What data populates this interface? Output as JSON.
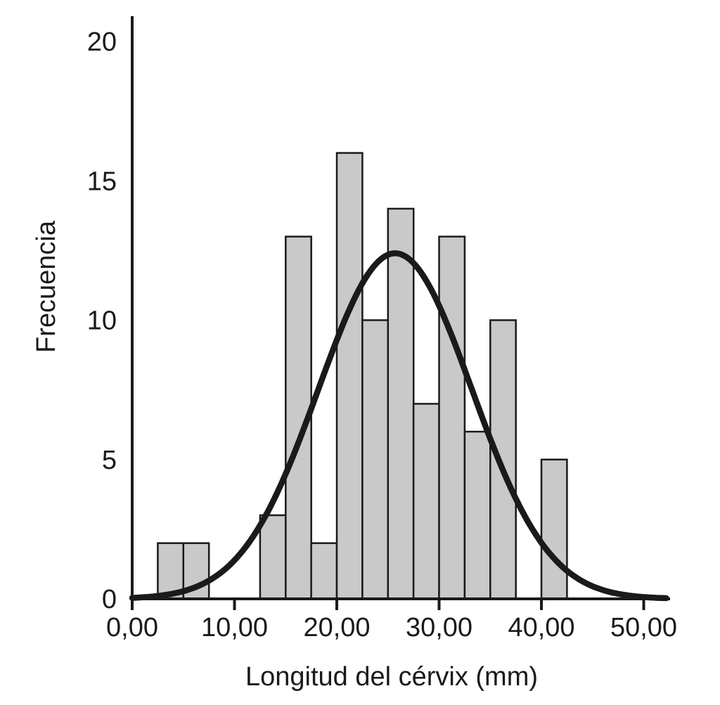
{
  "figure": {
    "background_color": "#ffffff",
    "bar_fill_color": "#c9c9c9",
    "bar_border_color": "#1a1a1a",
    "axis_color": "#1a1a1a",
    "curve_color": "#1a1a1a"
  },
  "chart_data": {
    "type": "bar",
    "subtype": "histogram-with-normal-curve",
    "title": "",
    "xlabel": "Longitud del cérvix (mm)",
    "ylabel": "Frecuencia",
    "xlim": [
      0,
      52.4
    ],
    "ylim": [
      0,
      20.9
    ],
    "grid": false,
    "legend": null,
    "bin_width": 2.5,
    "total_n": 103,
    "bins": [
      {
        "start": 2.5,
        "end": 5.0,
        "count": 2
      },
      {
        "start": 5.0,
        "end": 7.5,
        "count": 2
      },
      {
        "start": 7.5,
        "end": 10.0,
        "count": 0
      },
      {
        "start": 10.0,
        "end": 12.5,
        "count": 0
      },
      {
        "start": 12.5,
        "end": 15.0,
        "count": 3
      },
      {
        "start": 15.0,
        "end": 17.5,
        "count": 13
      },
      {
        "start": 17.5,
        "end": 20.0,
        "count": 2
      },
      {
        "start": 20.0,
        "end": 22.5,
        "count": 16
      },
      {
        "start": 22.5,
        "end": 25.0,
        "count": 10
      },
      {
        "start": 25.0,
        "end": 27.5,
        "count": 14
      },
      {
        "start": 27.5,
        "end": 30.0,
        "count": 7
      },
      {
        "start": 30.0,
        "end": 32.5,
        "count": 13
      },
      {
        "start": 32.5,
        "end": 35.0,
        "count": 6
      },
      {
        "start": 35.0,
        "end": 37.5,
        "count": 10
      },
      {
        "start": 37.5,
        "end": 40.0,
        "count": 0
      },
      {
        "start": 40.0,
        "end": 42.5,
        "count": 5
      }
    ],
    "x_ticks": [
      {
        "value": 0,
        "label": "0,00"
      },
      {
        "value": 10,
        "label": "10,00"
      },
      {
        "value": 20,
        "label": "20,00"
      },
      {
        "value": 30,
        "label": "30,00"
      },
      {
        "value": 40,
        "label": "40,00"
      },
      {
        "value": 50,
        "label": "50,00"
      }
    ],
    "y_ticks": [
      {
        "value": 0,
        "label": "0"
      },
      {
        "value": 5,
        "label": "5"
      },
      {
        "value": 10,
        "label": "10"
      },
      {
        "value": 15,
        "label": "15"
      },
      {
        "value": 20,
        "label": "20"
      }
    ],
    "normal_curve": {
      "mean": 25.7,
      "sd": 7.5,
      "peak": 12.4
    }
  }
}
